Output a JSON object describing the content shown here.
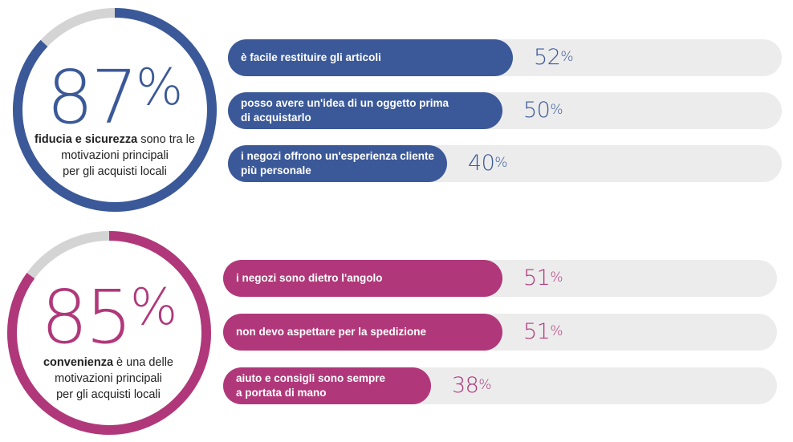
{
  "chart_data": [
    {
      "type": "bar",
      "orientation": "horizontal",
      "headline": {
        "value": 87,
        "unit": "%",
        "caption_bold": "fiducia e sicurezza",
        "caption_rest_1": "sono tra le",
        "caption_rest_2": "motivazioni principali",
        "caption_rest_3": "per gli acquisti locali"
      },
      "color": "#3b5998",
      "categories": [
        "è facile restituire gli articoli",
        "posso avere un'idea di un oggetto prima di acquistarlo",
        "i negozi offrono un'esperienza cliente più personale"
      ],
      "labels_lines": [
        [
          "è facile restituire gli articoli"
        ],
        [
          "posso avere un'idea di un oggetto prima",
          "di acquistarlo"
        ],
        [
          "i negozi offrono un'esperienza cliente",
          "più personale"
        ]
      ],
      "values": [
        52,
        50,
        40
      ],
      "value_labels": [
        "52",
        "50",
        "40"
      ],
      "unit": "%",
      "xlim": [
        0,
        100
      ]
    },
    {
      "type": "bar",
      "orientation": "horizontal",
      "headline": {
        "value": 85,
        "unit": "%",
        "caption_bold": "convenienza",
        "caption_rest_1": " è una delle",
        "caption_rest_2": "motivazioni  principali",
        "caption_rest_3": "per gli acquisti locali"
      },
      "color": "#b0387a",
      "categories": [
        "i negozi sono dietro l'angolo",
        "non devo aspettare per la spedizione",
        "aiuto e consigli sono sempre a portata di mano"
      ],
      "labels_lines": [
        [
          "i negozi sono dietro l'angolo"
        ],
        [
          "non devo aspettare per la spedizione"
        ],
        [
          "aiuto e consigli sono sempre",
          "a portata di mano"
        ]
      ],
      "values": [
        51,
        51,
        38
      ],
      "value_labels": [
        "51",
        "51",
        "38"
      ],
      "unit": "%",
      "xlim": [
        0,
        100
      ]
    }
  ],
  "colors": {
    "track": "#ececed",
    "ring_rest": "#d4d4d4"
  }
}
